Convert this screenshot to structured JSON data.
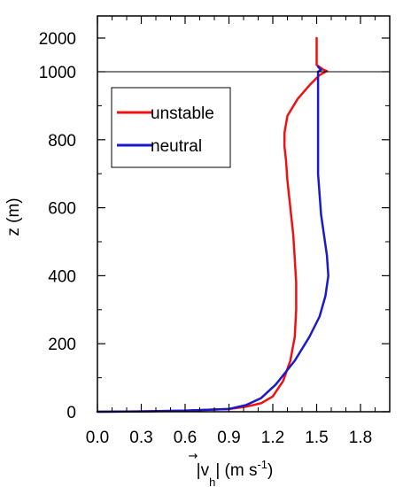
{
  "chart_data": {
    "type": "line",
    "title": "",
    "xlabel": {
      "prefix": "|",
      "symbol": "v",
      "arrow": "→",
      "subscript": "h",
      "suffix": "| (m s",
      "exponent": "-1",
      "close": ")"
    },
    "ylabel": "z (m)",
    "xlim": [
      0.0,
      2.0
    ],
    "x_ticks": [
      0.0,
      0.3,
      0.6,
      0.9,
      1.2,
      1.5,
      1.8
    ],
    "x_tick_labels": [
      "0.0",
      "0.3",
      "0.6",
      "0.9",
      "1.2",
      "1.5",
      "1.8"
    ],
    "y_scale": "linear from 0 to 1000 m, compressed section from 1000 to 2000 m above the horizontal reference line",
    "y_ticks": [
      0,
      200,
      400,
      600,
      800,
      1000,
      2000
    ],
    "y_tick_labels": [
      "0",
      "200",
      "400",
      "600",
      "800",
      "1000",
      "2000"
    ],
    "reference_line_z": 1000,
    "grid": false,
    "legend": {
      "placement": "top-left",
      "bordered": true
    },
    "series": [
      {
        "name": "unstable",
        "color": "#ee1111",
        "x": [
          0.0,
          0.3,
          0.6,
          0.9,
          1.02,
          1.12,
          1.2,
          1.27,
          1.32,
          1.35,
          1.36,
          1.36,
          1.35,
          1.34,
          1.32,
          1.3,
          1.29,
          1.28,
          1.28,
          1.3,
          1.37,
          1.45,
          1.52,
          1.57,
          1.55,
          1.5,
          1.5
        ],
        "z": [
          0,
          1,
          3,
          8,
          15,
          25,
          45,
          90,
          150,
          220,
          300,
          380,
          450,
          520,
          600,
          680,
          740,
          780,
          820,
          870,
          920,
          960,
          990,
          1020,
          1050,
          1200,
          2000
        ]
      },
      {
        "name": "neutral",
        "color": "#1a1acc",
        "x": [
          0.0,
          0.3,
          0.6,
          0.9,
          1.02,
          1.12,
          1.22,
          1.35,
          1.45,
          1.52,
          1.56,
          1.58,
          1.57,
          1.55,
          1.53,
          1.52,
          1.51,
          1.51,
          1.51,
          1.51,
          1.51,
          1.53,
          1.52,
          1.51
        ],
        "z": [
          0,
          1,
          3,
          8,
          20,
          40,
          80,
          150,
          220,
          280,
          340,
          400,
          460,
          520,
          580,
          640,
          700,
          800,
          900,
          950,
          1000,
          1050,
          1100,
          1150
        ]
      }
    ]
  }
}
